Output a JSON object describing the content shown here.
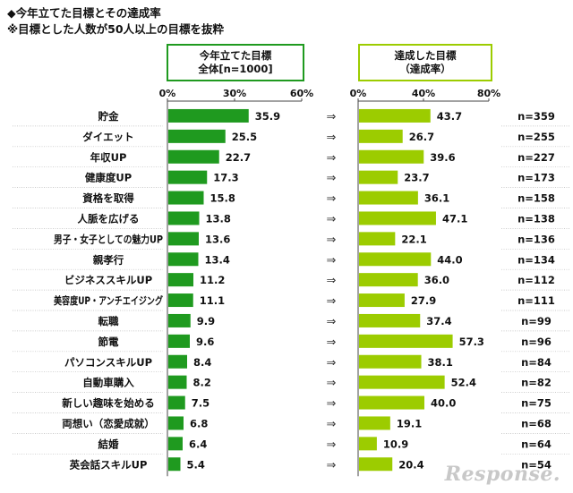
{
  "title_line1": "◆今年立てた目標とその達成率",
  "title_line2": "※目標とした人数が50人以上の目標を抜粋",
  "panel1": {
    "header_line1": "今年立てた目標",
    "header_line2": "全体[n=1000]",
    "color": "#1f9a1f"
  },
  "panel2": {
    "header_line1": "達成した目標",
    "header_line2": "（達成率）",
    "color": "#9ccc00"
  },
  "arrow_symbol": "⇒",
  "watermark": "Response.",
  "chart_data": {
    "type": "bar",
    "categories": [
      "貯金",
      "ダイエット",
      "年収UP",
      "健康度UP",
      "資格を取得",
      "人脈を広げる",
      "男子・女子としての魅力UP",
      "親孝行",
      "ビジネススキルUP",
      "美容度UP・アンチエイジング",
      "転職",
      "節電",
      "パソコンスキルUP",
      "自動車購入",
      "新しい趣味を始める",
      "両想い（恋愛成就）",
      "結婚",
      "英会話スキルUP"
    ],
    "series": [
      {
        "values": [
          35.9,
          25.5,
          22.7,
          17.3,
          15.8,
          13.8,
          13.6,
          13.4,
          11.2,
          11.1,
          9.9,
          9.6,
          8.4,
          8.2,
          7.5,
          6.8,
          6.4,
          5.4
        ],
        "xlim": [
          0,
          60
        ],
        "ticks": [
          "0%",
          "30%",
          "60%"
        ],
        "tick_values": [
          0,
          30,
          60
        ]
      },
      {
        "values": [
          43.7,
          26.7,
          39.6,
          23.7,
          36.1,
          47.1,
          22.1,
          44.0,
          36.0,
          27.9,
          37.4,
          57.3,
          38.1,
          52.4,
          40.0,
          19.1,
          10.9,
          20.4
        ],
        "xlim": [
          0,
          80
        ],
        "ticks": [
          "0%",
          "40%",
          "80%"
        ],
        "tick_values": [
          0,
          40,
          80
        ]
      }
    ],
    "n_labels": [
      "n=359",
      "n=255",
      "n=227",
      "n=173",
      "n=158",
      "n=138",
      "n=136",
      "n=134",
      "n=112",
      "n=111",
      "n=99",
      "n=96",
      "n=84",
      "n=82",
      "n=75",
      "n=68",
      "n=64",
      "n=54"
    ]
  }
}
